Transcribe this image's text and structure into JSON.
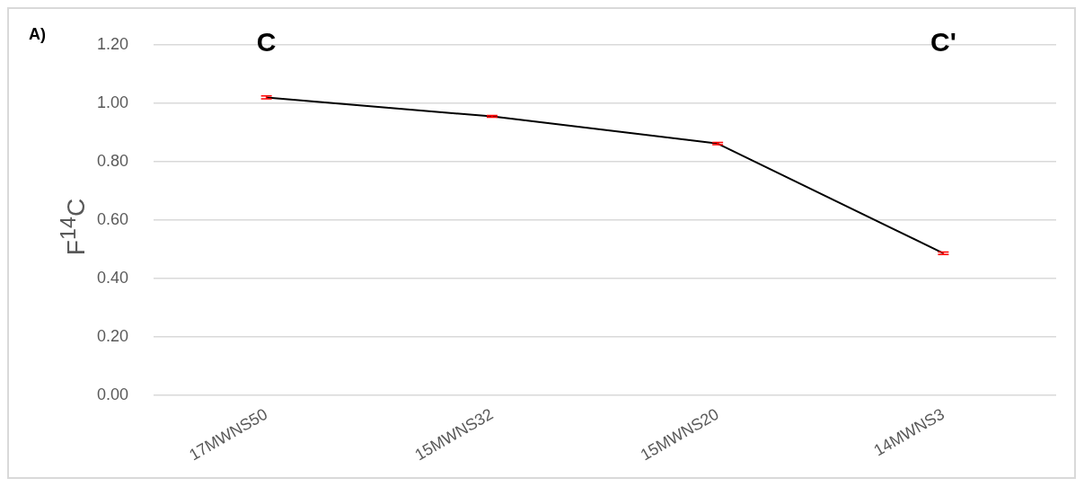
{
  "chart_data": {
    "type": "line",
    "ylabel": "F$^{14}$C",
    "categories": [
      "17MWNS50",
      "15MWNS32",
      "15MWNS20",
      "14MWNS3"
    ],
    "series": [
      {
        "color": "#000000",
        "values": [
          1.02,
          0.955,
          0.862,
          0.486
        ],
        "errors": [
          0.005,
          0.003,
          0.004,
          0.004
        ]
      }
    ],
    "ylim": [
      0,
      1.2
    ],
    "yticks": [
      {
        "value": 0,
        "label": "0.00"
      },
      {
        "value": 0.2,
        "label": "0.20"
      },
      {
        "value": 0.4,
        "label": "0.40"
      },
      {
        "value": 0.6,
        "label": "0.60"
      },
      {
        "value": 0.8,
        "label": "0.80"
      },
      {
        "value": 1,
        "label": "1.00"
      },
      {
        "value": 1.2,
        "label": "1.20"
      }
    ],
    "grid": "y",
    "legend": false,
    "marker": "none",
    "line_style": "solid",
    "annotations": [
      "A)",
      "C",
      "C'"
    ]
  }
}
